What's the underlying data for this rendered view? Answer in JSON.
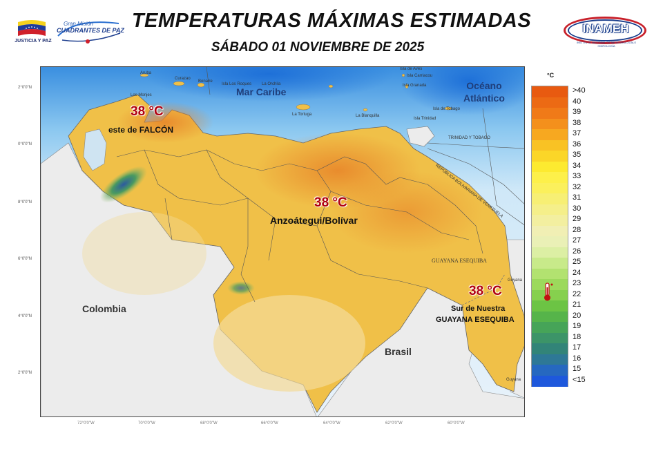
{
  "header": {
    "title": "TEMPERATURAS MÁXIMAS ESTIMADAS",
    "date": "SÁBADO 01 NOVIEMBRE DE 2025"
  },
  "logos": {
    "left_caption": "JUSTICIA Y PAZ",
    "mission_line1": "Gran Misión",
    "mission_line2": "CUADRANTES DE PAZ",
    "inameh": "INAMEH",
    "inameh_sub": "INSTITUTO NACIONAL DE METEOROLOGÍA E HIDROLOGÍA"
  },
  "map": {
    "seas": [
      "Mar Caribe",
      "Océano Atlántico"
    ],
    "ocean_line1": "Océano",
    "ocean_line2": "Atlántico",
    "countries": [
      "Colombia",
      "Brasil",
      "GUAYANA ESEQUIBA"
    ],
    "islands": [
      "Aruba",
      "Curazao",
      "Bonaire",
      "Los Monjes",
      "La Tortuga",
      "La Blanquilla",
      "La Orchila",
      "Isla de Aves",
      "Isla Los Roques",
      "Isla Carriacou",
      "Isla Granada",
      "Isla de Tobago",
      "Isla Trinidad"
    ],
    "borders": [
      "TRINIDAD Y TOBAGO",
      "REPÚBLICA BOLIVARIANA DE VENEZUELA"
    ],
    "neighbors": [
      "Guyana",
      "Guyana"
    ],
    "lat_ticks": [
      "2°0'0\"N",
      "0°0'0\"N",
      "8°0'0\"N",
      "6°0'0\"N",
      "4°0'0\"N",
      "2°0'0\"N"
    ],
    "lon_ticks": [
      "72°0'0\"W",
      "70°0'0\"W",
      "68°0'0\"W",
      "66°0'0\"W",
      "64°0'0\"W",
      "62°0'0\"W",
      "60°0'0\"W"
    ]
  },
  "annotations": [
    {
      "temp": "38 °C",
      "place": "este  de FALCÓN"
    },
    {
      "temp": "38 °C",
      "place": "Anzoátegui/Bolívar"
    },
    {
      "temp": "38 °C",
      "place_line1": "Sur de Nuestra",
      "place_line2": "GUAYANA ESEQUIBA"
    }
  ],
  "legend": {
    "unit": "°C",
    "labels": [
      ">40",
      "40",
      "39",
      "38",
      "37",
      "36",
      "35",
      "34",
      "33",
      "32",
      "31",
      "30",
      "29",
      "28",
      "27",
      "26",
      "25",
      "24",
      "23",
      "22",
      "21",
      "20",
      "19",
      "18",
      "17",
      "16",
      "15",
      "<15"
    ],
    "colors": [
      "#e85a10",
      "#ec6a14",
      "#f07a18",
      "#f4901c",
      "#f7a820",
      "#f9c224",
      "#fbd628",
      "#fdea30",
      "#fdf04a",
      "#fbf05c",
      "#f7ef74",
      "#f5ef8a",
      "#f3efa0",
      "#f1efb4",
      "#eaf0b6",
      "#dcefa4",
      "#c8ea8a",
      "#b2e270",
      "#9cd95c",
      "#86d04e",
      "#6cc444",
      "#56b44a",
      "#46a458",
      "#3c9468",
      "#328478",
      "#2e7896",
      "#2668c0",
      "#1e58dc"
    ],
    "icon": "thermometer-icon"
  }
}
